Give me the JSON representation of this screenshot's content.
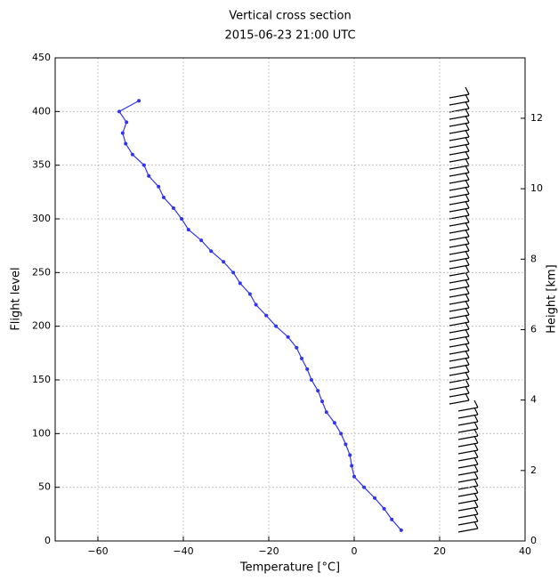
{
  "chart_data": {
    "type": "line",
    "title": "Vertical cross section",
    "subtitle": "2015-06-23 21:00 UTC",
    "x_label": "Temperature [°C]",
    "y_label": "Flight level",
    "y2_label": "Height [km]",
    "x": [
      11,
      8.8,
      7,
      4.8,
      2.3,
      0,
      -0.6,
      -1,
      -2,
      -3.1,
      -4.6,
      -6.5,
      -7.5,
      -8.5,
      -10,
      -11,
      -12.3,
      -13.5,
      -15.5,
      -18.3,
      -20.6,
      -23,
      -24.4,
      -26.7,
      -28.3,
      -30.6,
      -33.5,
      -35.8,
      -38.8,
      -40.4,
      -42.3,
      -44.6,
      -45.8,
      -48.1,
      -49.2,
      -51.9,
      -53.5,
      -54.2,
      -53.3,
      -55,
      -50.4
    ],
    "values": [
      10,
      20,
      30,
      40,
      50,
      60,
      70,
      80,
      90,
      100,
      110,
      120,
      130,
      140,
      150,
      160,
      170,
      180,
      190,
      200,
      210,
      220,
      230,
      240,
      250,
      260,
      270,
      280,
      290,
      300,
      310,
      320,
      330,
      340,
      350,
      360,
      370,
      380,
      390,
      400,
      410
    ],
    "color": "#3333ee",
    "xlim": [
      -70,
      40
    ],
    "xticks": [
      {
        "value": -60,
        "label": "−60"
      },
      {
        "value": -40,
        "label": "−40"
      },
      {
        "value": -20,
        "label": "−20"
      },
      0,
      20,
      40
    ],
    "ylim": [
      0,
      450
    ],
    "yticks": [
      0,
      50,
      100,
      150,
      200,
      250,
      300,
      350,
      400,
      450
    ],
    "y2lim": [
      0,
      13.716
    ],
    "y2ticks": [
      0,
      2,
      4,
      6,
      8,
      10,
      12
    ],
    "grid": true
  }
}
